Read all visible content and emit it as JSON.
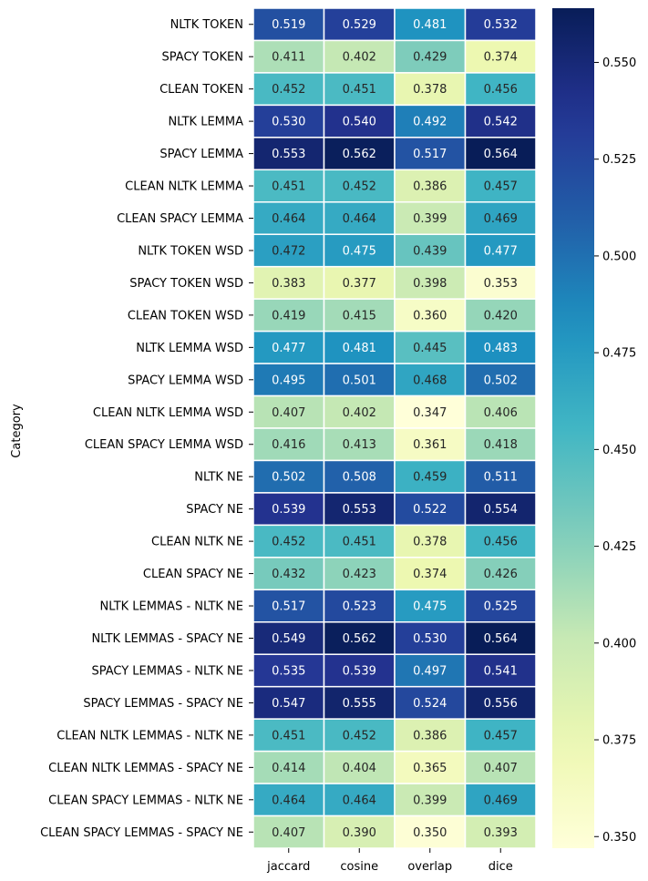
{
  "chart_data": {
    "type": "heatmap",
    "title": "",
    "xlabel": "",
    "ylabel": "Category",
    "x_categories": [
      "jaccard",
      "cosine",
      "overlap",
      "dice"
    ],
    "y_categories": [
      "NLTK TOKEN",
      "SPACY TOKEN",
      "CLEAN TOKEN",
      "NLTK LEMMA",
      "SPACY LEMMA",
      "CLEAN NLTK LEMMA",
      "CLEAN SPACY LEMMA",
      "NLTK TOKEN WSD",
      "SPACY TOKEN WSD",
      "CLEAN TOKEN WSD",
      "NLTK LEMMA WSD",
      "SPACY LEMMA WSD",
      "CLEAN NLTK LEMMA WSD",
      "CLEAN SPACY LEMMA WSD",
      "NLTK NE",
      "SPACY NE",
      "CLEAN NLTK NE",
      "CLEAN SPACY NE",
      "NLTK LEMMAS - NLTK NE",
      "NLTK LEMMAS - SPACY NE",
      "SPACY LEMMAS - NLTK NE",
      "SPACY LEMMAS - SPACY NE",
      "CLEAN NLTK LEMMAS - NLTK NE",
      "CLEAN NLTK LEMMAS - SPACY NE",
      "CLEAN SPACY LEMMAS - NLTK NE",
      "CLEAN SPACY LEMMAS - SPACY NE"
    ],
    "values": [
      [
        0.519,
        0.529,
        0.481,
        0.532
      ],
      [
        0.411,
        0.402,
        0.429,
        0.374
      ],
      [
        0.452,
        0.451,
        0.378,
        0.456
      ],
      [
        0.53,
        0.54,
        0.492,
        0.542
      ],
      [
        0.553,
        0.562,
        0.517,
        0.564
      ],
      [
        0.451,
        0.452,
        0.386,
        0.457
      ],
      [
        0.464,
        0.464,
        0.399,
        0.469
      ],
      [
        0.472,
        0.475,
        0.439,
        0.477
      ],
      [
        0.383,
        0.377,
        0.398,
        0.353
      ],
      [
        0.419,
        0.415,
        0.36,
        0.42
      ],
      [
        0.477,
        0.481,
        0.445,
        0.483
      ],
      [
        0.495,
        0.501,
        0.468,
        0.502
      ],
      [
        0.407,
        0.402,
        0.347,
        0.406
      ],
      [
        0.416,
        0.413,
        0.361,
        0.418
      ],
      [
        0.502,
        0.508,
        0.459,
        0.511
      ],
      [
        0.539,
        0.553,
        0.522,
        0.554
      ],
      [
        0.452,
        0.451,
        0.378,
        0.456
      ],
      [
        0.432,
        0.423,
        0.374,
        0.426
      ],
      [
        0.517,
        0.523,
        0.475,
        0.525
      ],
      [
        0.549,
        0.562,
        0.53,
        0.564
      ],
      [
        0.535,
        0.539,
        0.497,
        0.541
      ],
      [
        0.547,
        0.555,
        0.524,
        0.556
      ],
      [
        0.451,
        0.452,
        0.386,
        0.457
      ],
      [
        0.414,
        0.404,
        0.365,
        0.407
      ],
      [
        0.464,
        0.464,
        0.399,
        0.469
      ],
      [
        0.407,
        0.39,
        0.35,
        0.393
      ]
    ],
    "colormap": "YlGnBu",
    "colorbar": {
      "range": [
        0.347,
        0.564
      ],
      "ticks": [
        "0.350",
        "0.375",
        "0.400",
        "0.425",
        "0.450",
        "0.475",
        "0.500",
        "0.525",
        "0.550"
      ]
    },
    "grid": false,
    "legend": "colorbar-right"
  }
}
